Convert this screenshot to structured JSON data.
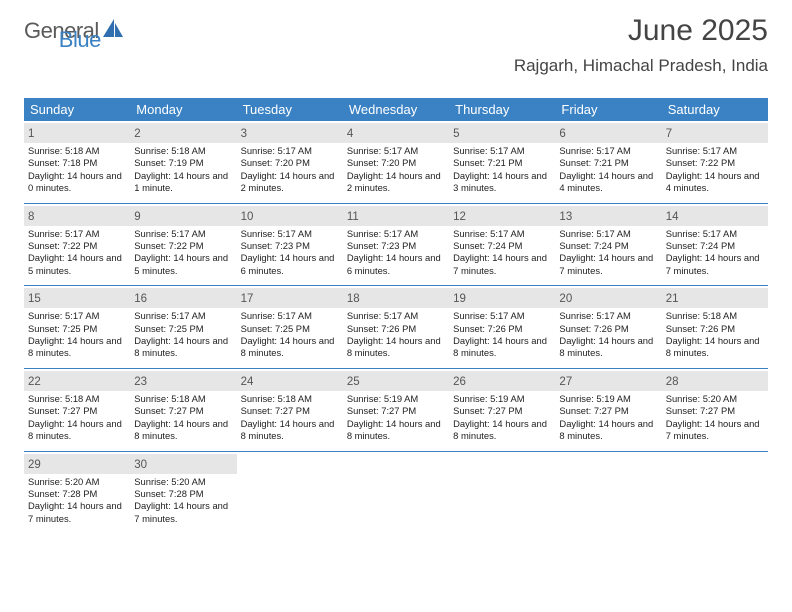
{
  "brand": {
    "text_main": "General",
    "text_sub": "Blue",
    "sail_color": "#2f6fb0"
  },
  "title": {
    "month": "June 2025",
    "location": "Rajgarh, Himachal Pradesh, India"
  },
  "colors": {
    "header_bar": "#3a82c4",
    "daynum_bg": "#e6e6e6",
    "week_divider": "#3a82c4",
    "text": "#222222"
  },
  "days_of_week": [
    "Sunday",
    "Monday",
    "Tuesday",
    "Wednesday",
    "Thursday",
    "Friday",
    "Saturday"
  ],
  "cells": [
    {
      "day": 1,
      "sunrise": "5:18 AM",
      "sunset": "7:18 PM",
      "daylight": "14 hours and 0 minutes."
    },
    {
      "day": 2,
      "sunrise": "5:18 AM",
      "sunset": "7:19 PM",
      "daylight": "14 hours and 1 minute."
    },
    {
      "day": 3,
      "sunrise": "5:17 AM",
      "sunset": "7:20 PM",
      "daylight": "14 hours and 2 minutes."
    },
    {
      "day": 4,
      "sunrise": "5:17 AM",
      "sunset": "7:20 PM",
      "daylight": "14 hours and 2 minutes."
    },
    {
      "day": 5,
      "sunrise": "5:17 AM",
      "sunset": "7:21 PM",
      "daylight": "14 hours and 3 minutes."
    },
    {
      "day": 6,
      "sunrise": "5:17 AM",
      "sunset": "7:21 PM",
      "daylight": "14 hours and 4 minutes."
    },
    {
      "day": 7,
      "sunrise": "5:17 AM",
      "sunset": "7:22 PM",
      "daylight": "14 hours and 4 minutes."
    },
    {
      "day": 8,
      "sunrise": "5:17 AM",
      "sunset": "7:22 PM",
      "daylight": "14 hours and 5 minutes."
    },
    {
      "day": 9,
      "sunrise": "5:17 AM",
      "sunset": "7:22 PM",
      "daylight": "14 hours and 5 minutes."
    },
    {
      "day": 10,
      "sunrise": "5:17 AM",
      "sunset": "7:23 PM",
      "daylight": "14 hours and 6 minutes."
    },
    {
      "day": 11,
      "sunrise": "5:17 AM",
      "sunset": "7:23 PM",
      "daylight": "14 hours and 6 minutes."
    },
    {
      "day": 12,
      "sunrise": "5:17 AM",
      "sunset": "7:24 PM",
      "daylight": "14 hours and 7 minutes."
    },
    {
      "day": 13,
      "sunrise": "5:17 AM",
      "sunset": "7:24 PM",
      "daylight": "14 hours and 7 minutes."
    },
    {
      "day": 14,
      "sunrise": "5:17 AM",
      "sunset": "7:24 PM",
      "daylight": "14 hours and 7 minutes."
    },
    {
      "day": 15,
      "sunrise": "5:17 AM",
      "sunset": "7:25 PM",
      "daylight": "14 hours and 8 minutes."
    },
    {
      "day": 16,
      "sunrise": "5:17 AM",
      "sunset": "7:25 PM",
      "daylight": "14 hours and 8 minutes."
    },
    {
      "day": 17,
      "sunrise": "5:17 AM",
      "sunset": "7:25 PM",
      "daylight": "14 hours and 8 minutes."
    },
    {
      "day": 18,
      "sunrise": "5:17 AM",
      "sunset": "7:26 PM",
      "daylight": "14 hours and 8 minutes."
    },
    {
      "day": 19,
      "sunrise": "5:17 AM",
      "sunset": "7:26 PM",
      "daylight": "14 hours and 8 minutes."
    },
    {
      "day": 20,
      "sunrise": "5:17 AM",
      "sunset": "7:26 PM",
      "daylight": "14 hours and 8 minutes."
    },
    {
      "day": 21,
      "sunrise": "5:18 AM",
      "sunset": "7:26 PM",
      "daylight": "14 hours and 8 minutes."
    },
    {
      "day": 22,
      "sunrise": "5:18 AM",
      "sunset": "7:27 PM",
      "daylight": "14 hours and 8 minutes."
    },
    {
      "day": 23,
      "sunrise": "5:18 AM",
      "sunset": "7:27 PM",
      "daylight": "14 hours and 8 minutes."
    },
    {
      "day": 24,
      "sunrise": "5:18 AM",
      "sunset": "7:27 PM",
      "daylight": "14 hours and 8 minutes."
    },
    {
      "day": 25,
      "sunrise": "5:19 AM",
      "sunset": "7:27 PM",
      "daylight": "14 hours and 8 minutes."
    },
    {
      "day": 26,
      "sunrise": "5:19 AM",
      "sunset": "7:27 PM",
      "daylight": "14 hours and 8 minutes."
    },
    {
      "day": 27,
      "sunrise": "5:19 AM",
      "sunset": "7:27 PM",
      "daylight": "14 hours and 8 minutes."
    },
    {
      "day": 28,
      "sunrise": "5:20 AM",
      "sunset": "7:27 PM",
      "daylight": "14 hours and 7 minutes."
    },
    {
      "day": 29,
      "sunrise": "5:20 AM",
      "sunset": "7:28 PM",
      "daylight": "14 hours and 7 minutes."
    },
    {
      "day": 30,
      "sunrise": "5:20 AM",
      "sunset": "7:28 PM",
      "daylight": "14 hours and 7 minutes."
    }
  ],
  "labels": {
    "sunrise": "Sunrise:",
    "sunset": "Sunset:",
    "daylight": "Daylight:"
  }
}
